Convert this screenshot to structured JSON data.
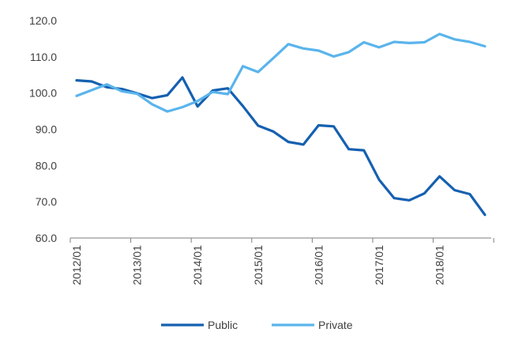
{
  "chart_data": {
    "type": "line",
    "title": "",
    "xlabel": "",
    "ylabel": "",
    "x_tick_labels": [
      "2012/01",
      "2013/01",
      "2014/01",
      "2015/01",
      "2016/01",
      "2017/01",
      "2018/01"
    ],
    "x_tick_index": [
      0,
      4,
      8,
      12,
      16,
      20,
      24
    ],
    "x_categories": [
      "2012/01",
      "2012/04",
      "2012/07",
      "2012/10",
      "2013/01",
      "2013/04",
      "2013/07",
      "2013/10",
      "2014/01",
      "2014/04",
      "2014/07",
      "2014/10",
      "2015/01",
      "2015/04",
      "2015/07",
      "2015/10",
      "2016/01",
      "2016/04",
      "2016/07",
      "2016/10",
      "2017/01",
      "2017/04",
      "2017/07",
      "2017/10",
      "2018/01",
      "2018/04",
      "2018/07",
      "2018/10"
    ],
    "ylim": [
      60,
      120
    ],
    "y_tick_labels": [
      "60.0",
      "70.0",
      "80.0",
      "90.0",
      "100.0",
      "110.0",
      "120.0"
    ],
    "y_ticks": [
      60,
      70,
      80,
      90,
      100,
      110,
      120
    ],
    "grid": false,
    "legend_position": "bottom",
    "series": [
      {
        "name": "Public",
        "color": "#1560b0",
        "values": [
          103.5,
          103.2,
          101.6,
          101.1,
          99.9,
          98.6,
          99.4,
          104.3,
          96.3,
          100.7,
          101.3,
          96.4,
          91.0,
          89.4,
          86.5,
          85.8,
          91.1,
          90.8,
          84.5,
          84.2,
          76.1,
          71.0,
          70.4,
          72.3,
          77.0,
          73.2,
          72.1,
          66.4
        ]
      },
      {
        "name": "Private",
        "color": "#5ab4ec",
        "values": [
          99.2,
          100.8,
          102.4,
          100.5,
          99.8,
          96.9,
          94.9,
          96.1,
          97.8,
          100.3,
          99.7,
          107.4,
          105.8,
          109.6,
          113.5,
          112.3,
          111.7,
          110.1,
          111.3,
          114.0,
          112.6,
          114.1,
          113.8,
          114.0,
          116.3,
          114.8,
          114.1,
          112.9
        ]
      }
    ]
  }
}
